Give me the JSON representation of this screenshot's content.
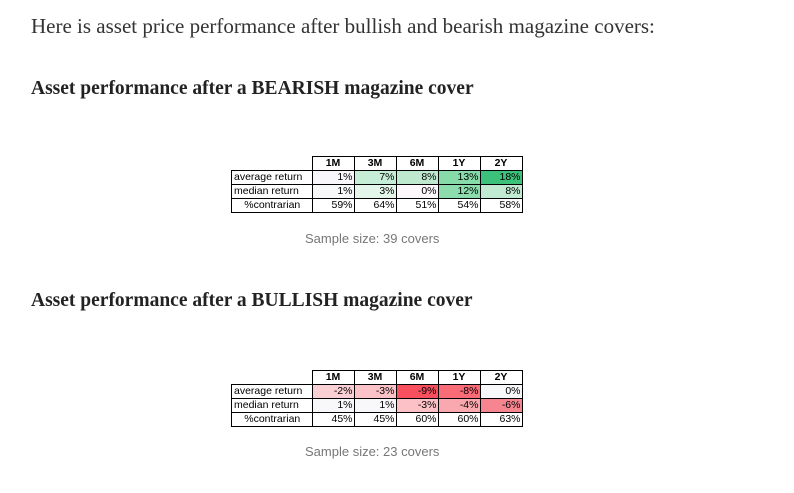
{
  "intro": "Here is asset price performance after bullish and bearish magazine covers:",
  "columns": [
    "1M",
    "3M",
    "6M",
    "1Y",
    "2Y"
  ],
  "bearish": {
    "heading": "Asset performance after a BEARISH magazine cover",
    "rows": [
      {
        "label": "average return",
        "values": [
          "1%",
          "7%",
          "8%",
          "13%",
          "18%"
        ],
        "colors": [
          "#f8f6fa",
          "#c6eed6",
          "#bfe9cf",
          "#86dba8",
          "#3cc27a"
        ]
      },
      {
        "label": "median return",
        "values": [
          "1%",
          "3%",
          "0%",
          "12%",
          "8%"
        ],
        "colors": [
          "#f7f8f9",
          "#e4f5ea",
          "#fbf7fb",
          "#8cdcad",
          "#c0ead2"
        ]
      },
      {
        "label": "%contrarian",
        "values": [
          "59%",
          "64%",
          "51%",
          "54%",
          "58%"
        ],
        "colors": [
          "#ffffff",
          "#ffffff",
          "#ffffff",
          "#ffffff",
          "#ffffff"
        ]
      }
    ],
    "caption": "Sample size: 39 covers"
  },
  "bullish": {
    "heading": "Asset performance after a BULLISH magazine cover",
    "rows": [
      {
        "label": "average return",
        "values": [
          "-2%",
          "-3%",
          "-9%",
          "-8%",
          "0%"
        ],
        "colors": [
          "#fbd0d4",
          "#fbc3c8",
          "#f8505f",
          "#f96b77",
          "#f8f7fa"
        ]
      },
      {
        "label": "median return",
        "values": [
          "1%",
          "1%",
          "-3%",
          "-4%",
          "-6%"
        ],
        "colors": [
          "#f8f8fb",
          "#f8f8fb",
          "#fbc1c6",
          "#f9a8af",
          "#f6858f"
        ]
      },
      {
        "label": "%contrarian",
        "values": [
          "45%",
          "45%",
          "60%",
          "60%",
          "63%"
        ],
        "colors": [
          "#ffffff",
          "#ffffff",
          "#ffffff",
          "#ffffff",
          "#ffffff"
        ]
      }
    ],
    "caption": "Sample size: 23 covers"
  }
}
